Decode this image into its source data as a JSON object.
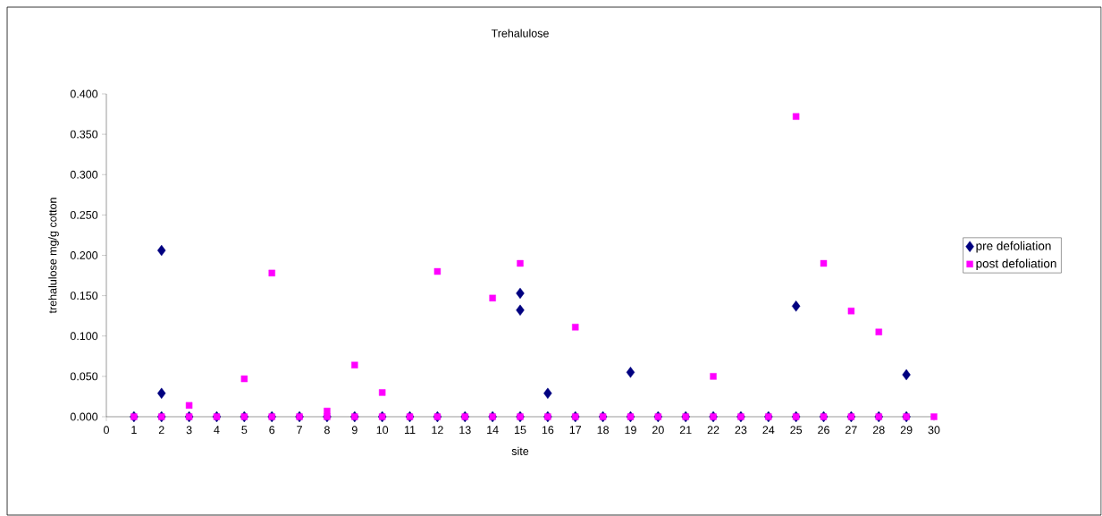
{
  "chart_data": {
    "type": "scatter",
    "title": "Trehalulose",
    "xlabel": "site",
    "ylabel": "trehalulose mg/g cotton",
    "xlim": [
      0,
      30
    ],
    "xticks": [
      0,
      1,
      2,
      3,
      4,
      5,
      6,
      7,
      8,
      9,
      10,
      11,
      12,
      13,
      14,
      15,
      16,
      17,
      18,
      19,
      20,
      21,
      22,
      23,
      24,
      25,
      26,
      27,
      28,
      29,
      30
    ],
    "ylim": [
      0,
      0.4
    ],
    "yticks": [
      {
        "value": 0,
        "label": "0.000"
      },
      {
        "value": 0.05,
        "label": "0.050"
      },
      {
        "value": 0.1,
        "label": "0.100"
      },
      {
        "value": 0.15,
        "label": "0.150"
      },
      {
        "value": 0.2,
        "label": "0.200"
      },
      {
        "value": 0.25,
        "label": "0.250"
      },
      {
        "value": 0.3,
        "label": "0.300"
      },
      {
        "value": 0.35,
        "label": "0.350"
      },
      {
        "value": 0.4,
        "label": "0.400"
      }
    ],
    "legend": "right",
    "series": [
      {
        "name": "pre defoliation",
        "color": "#000080",
        "marker": "diamond",
        "x": [
          1,
          2,
          3,
          4,
          5,
          6,
          7,
          8,
          9,
          10,
          11,
          12,
          13,
          14,
          15,
          16,
          17,
          18,
          19,
          20,
          21,
          22,
          23,
          24,
          25,
          26,
          27,
          28,
          29,
          2,
          2,
          15,
          15,
          16,
          19,
          25,
          29
        ],
        "values": [
          0,
          0,
          0,
          0,
          0,
          0,
          0,
          0,
          0,
          0,
          0,
          0,
          0,
          0,
          0,
          0,
          0,
          0,
          0,
          0,
          0,
          0,
          0,
          0,
          0,
          0,
          0,
          0,
          0,
          0.206,
          0.029,
          0.153,
          0.132,
          0.029,
          0.055,
          0.137,
          0.052
        ]
      },
      {
        "name": "post defoliation",
        "color": "#ff00ff",
        "marker": "square",
        "x": [
          1,
          2,
          3,
          4,
          5,
          6,
          7,
          8,
          9,
          10,
          11,
          12,
          13,
          14,
          15,
          16,
          17,
          18,
          19,
          20,
          21,
          22,
          23,
          24,
          25,
          26,
          27,
          28,
          29,
          30,
          3,
          5,
          6,
          8,
          9,
          10,
          12,
          14,
          15,
          17,
          22,
          25,
          26,
          27,
          28
        ],
        "values": [
          0,
          0,
          0,
          0,
          0,
          0,
          0,
          0,
          0,
          0,
          0,
          0,
          0,
          0,
          0,
          0,
          0,
          0,
          0,
          0,
          0,
          0,
          0,
          0,
          0,
          0,
          0,
          0,
          0,
          0,
          0.014,
          0.047,
          0.178,
          0.007,
          0.064,
          0.03,
          0.18,
          0.147,
          0.19,
          0.111,
          0.05,
          0.372,
          0.19,
          0.131,
          0.105
        ]
      }
    ]
  }
}
